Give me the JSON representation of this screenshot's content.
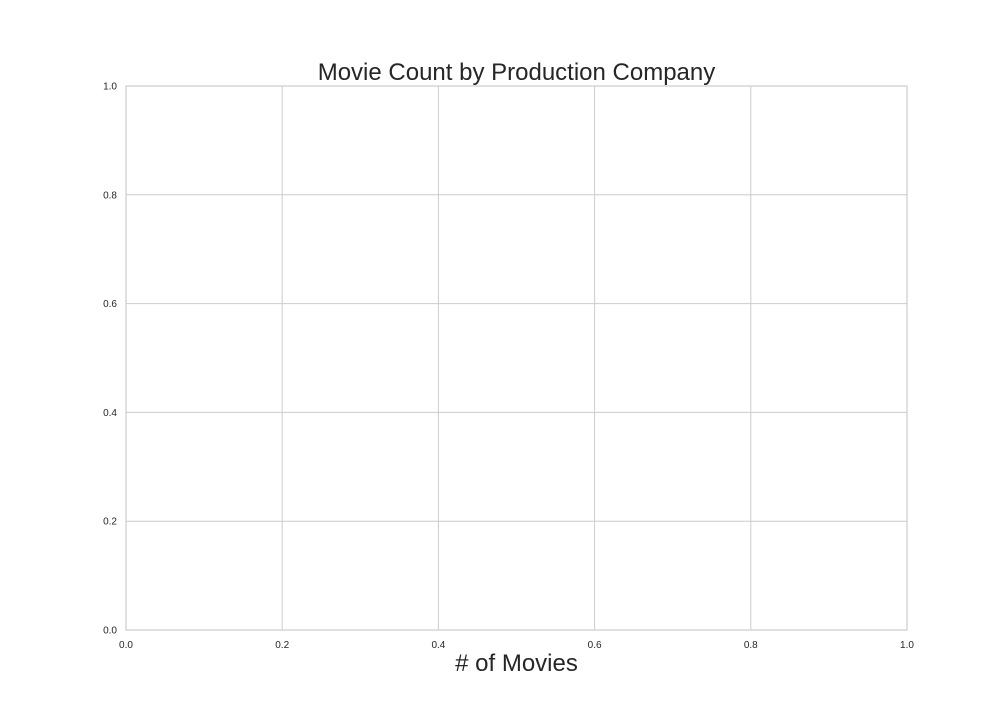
{
  "colors": {
    "background": "#ffffff",
    "grid": "#cccccc",
    "spine": "#cccccc",
    "text": "#262626"
  },
  "chart_data": {
    "type": "bar",
    "title": "Movie Count by Production Company",
    "xlabel": "# of Movies",
    "ylabel": "",
    "categories": [],
    "values": [],
    "xlim": [
      0.0,
      1.0
    ],
    "ylim": [
      0.0,
      1.0
    ],
    "xticks": [
      0.0,
      0.2,
      0.4,
      0.6,
      0.8,
      1.0
    ],
    "xtick_labels": [
      "0.0",
      "0.2",
      "0.4",
      "0.6",
      "0.8",
      "1.0"
    ],
    "yticks": [
      0.0,
      0.2,
      0.4,
      0.6,
      0.8,
      1.0
    ],
    "ytick_labels": [
      "0.0",
      "0.2",
      "0.4",
      "0.6",
      "0.8",
      "1.0"
    ],
    "grid": true,
    "legend": "none"
  }
}
